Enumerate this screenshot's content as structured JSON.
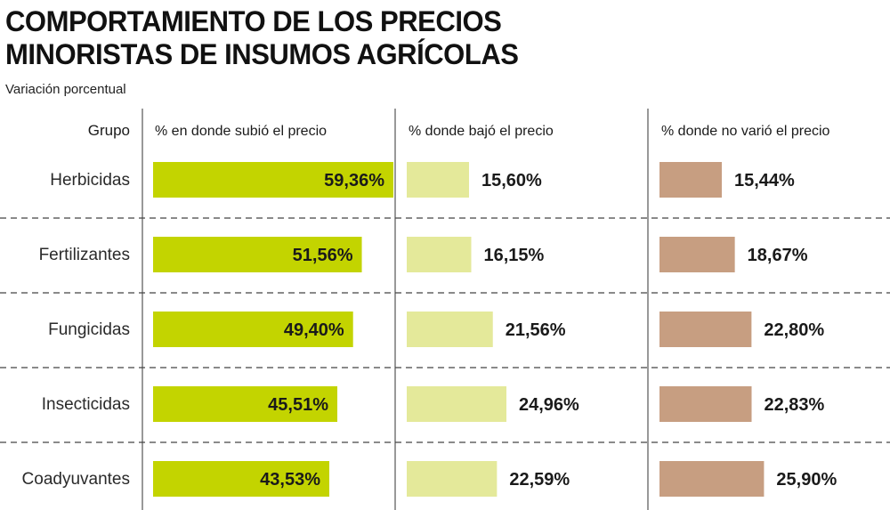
{
  "title_line1": "COMPORTAMIENTO DE LOS PRECIOS",
  "title_line2": "MINORISTAS DE INSUMOS AGRÍCOLAS",
  "subtitle": "Variación porcentual",
  "chart_data": {
    "type": "bar",
    "title": "COMPORTAMIENTO DE LOS PRECIOS MINORISTAS DE INSUMOS AGRÍCOLAS",
    "subtitle": "Variación porcentual",
    "category_header": "Grupo",
    "categories": [
      "Herbicidas",
      "Fertilizantes",
      "Fungicidas",
      "Insecticidas",
      "Coadyuvantes"
    ],
    "series": [
      {
        "name": "% en donde subió el precio",
        "color": "#c3d400",
        "values": [
          59.36,
          51.56,
          49.4,
          45.51,
          43.53
        ],
        "labels": [
          "59,36%",
          "51,56%",
          "49,40%",
          "45,51%",
          "43,53%"
        ]
      },
      {
        "name": "% donde bajó el precio",
        "color": "#e4e99a",
        "values": [
          15.6,
          16.15,
          21.56,
          24.96,
          22.59
        ],
        "labels": [
          "15,60%",
          "16,15%",
          "21,56%",
          "24,96%",
          "22,59%"
        ]
      },
      {
        "name": "% donde no varió el precio",
        "color": "#c79e81",
        "values": [
          15.44,
          18.67,
          22.8,
          22.83,
          25.9
        ],
        "labels": [
          "15,44%",
          "18,67%",
          "22,80%",
          "22,83%",
          "25,90%"
        ]
      }
    ],
    "orientation": "horizontal",
    "grid": false,
    "row_separators": "dashed"
  }
}
